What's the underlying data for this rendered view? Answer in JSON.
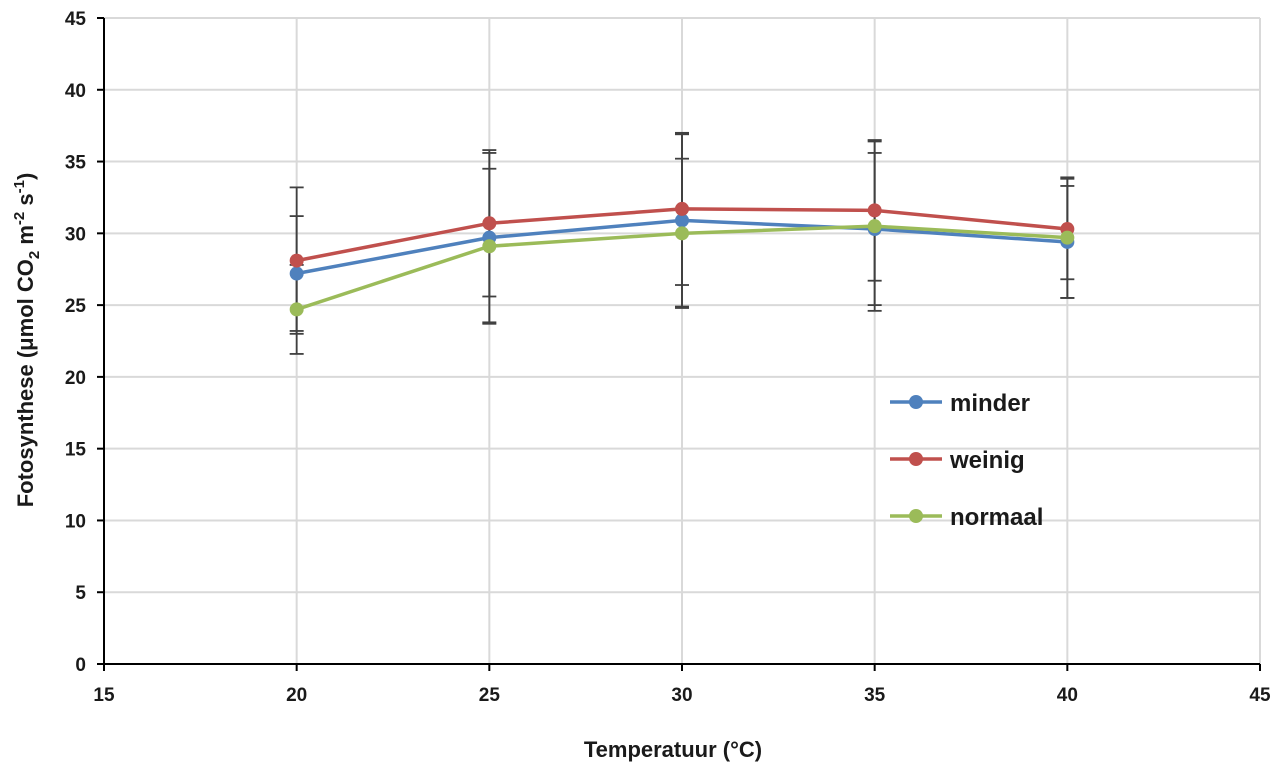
{
  "chart_data": {
    "type": "scatter",
    "xlabel": "Temperatuur (°C)",
    "ylabel": {
      "prefix": "Fotosynthese (μmol CO",
      "sub": "2",
      "mid1": " m",
      "sup1": "-2",
      "mid2": " s",
      "sup2": "-1",
      "suffix": ")"
    },
    "xlim": [
      15,
      45
    ],
    "ylim": [
      0,
      45
    ],
    "x_ticks": [
      "15",
      "20",
      "25",
      "30",
      "35",
      "40",
      "45"
    ],
    "y_ticks": [
      "0",
      "5",
      "10",
      "15",
      "20",
      "25",
      "30",
      "35",
      "40",
      "45"
    ],
    "grid": true,
    "legend_position": "right",
    "x": [
      20,
      25,
      30,
      35,
      40
    ],
    "series": [
      {
        "name": "minder",
        "color": "#4f81bd",
        "values": [
          27.2,
          29.7,
          30.9,
          30.3,
          29.4
        ],
        "error": [
          4.0,
          5.9,
          6.0,
          5.3,
          3.9
        ]
      },
      {
        "name": "weinig",
        "color": "#c0504d",
        "values": [
          28.1,
          30.7,
          31.7,
          31.6,
          30.3
        ],
        "error": [
          5.1,
          5.1,
          5.3,
          4.9,
          3.5
        ]
      },
      {
        "name": "normaal",
        "color": "#9bbb59",
        "values": [
          24.7,
          29.1,
          30.0,
          30.5,
          29.7
        ],
        "error": [
          3.1,
          5.4,
          5.2,
          5.9,
          4.2
        ]
      }
    ],
    "error_bar_color": "#404040"
  }
}
